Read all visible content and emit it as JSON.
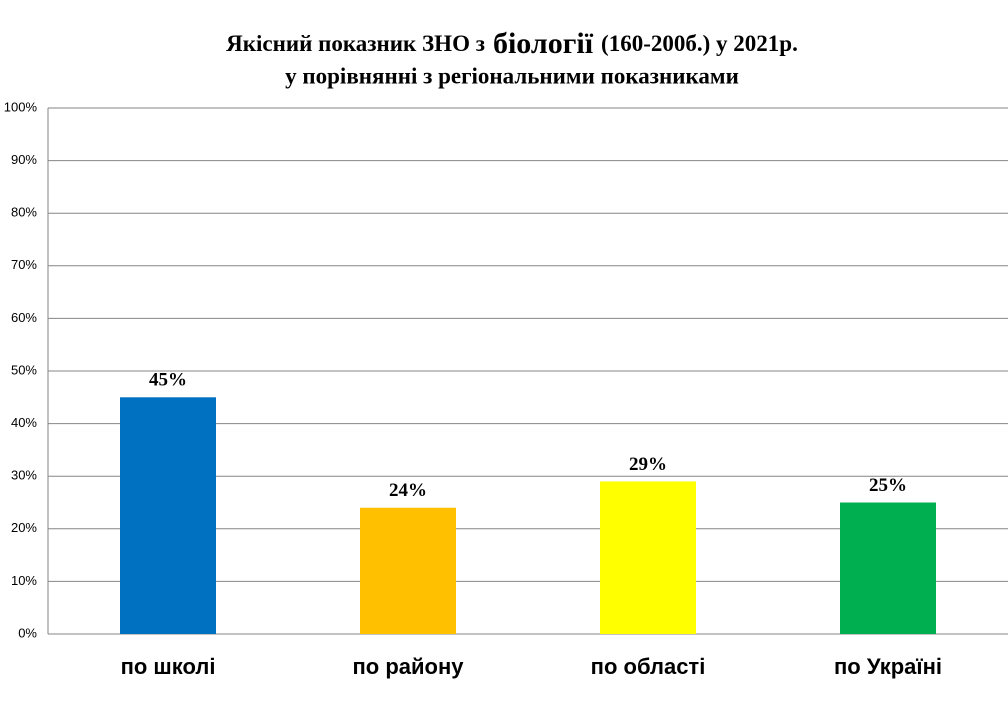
{
  "chart_data": {
    "type": "bar",
    "title": [
      "Якісний показник ЗНО з",
      "біології",
      "(160-200б.) у 2021р."
    ],
    "subtitle": "у порівнянні з регіональними показниками",
    "categories": [
      "по школі",
      "по району",
      "по області",
      "по Україні"
    ],
    "values": [
      45,
      24,
      29,
      25
    ],
    "value_labels": [
      "45%",
      "24%",
      "29%",
      "25%"
    ],
    "colors": [
      "#0070c0",
      "#ffc000",
      "#ffff00",
      "#00b050"
    ],
    "ylim": [
      0,
      100
    ],
    "yticks": [
      {
        "value": 0,
        "label": "0%"
      },
      {
        "value": 10,
        "label": "10%"
      },
      {
        "value": 20,
        "label": "20%"
      },
      {
        "value": 30,
        "label": "30%"
      },
      {
        "value": 40,
        "label": "40%"
      },
      {
        "value": 50,
        "label": "50%"
      },
      {
        "value": 60,
        "label": "60%"
      },
      {
        "value": 70,
        "label": "70%"
      },
      {
        "value": 80,
        "label": "80%"
      },
      {
        "value": 90,
        "label": "90%"
      },
      {
        "value": 100,
        "label": "100%"
      }
    ],
    "grid": true
  }
}
